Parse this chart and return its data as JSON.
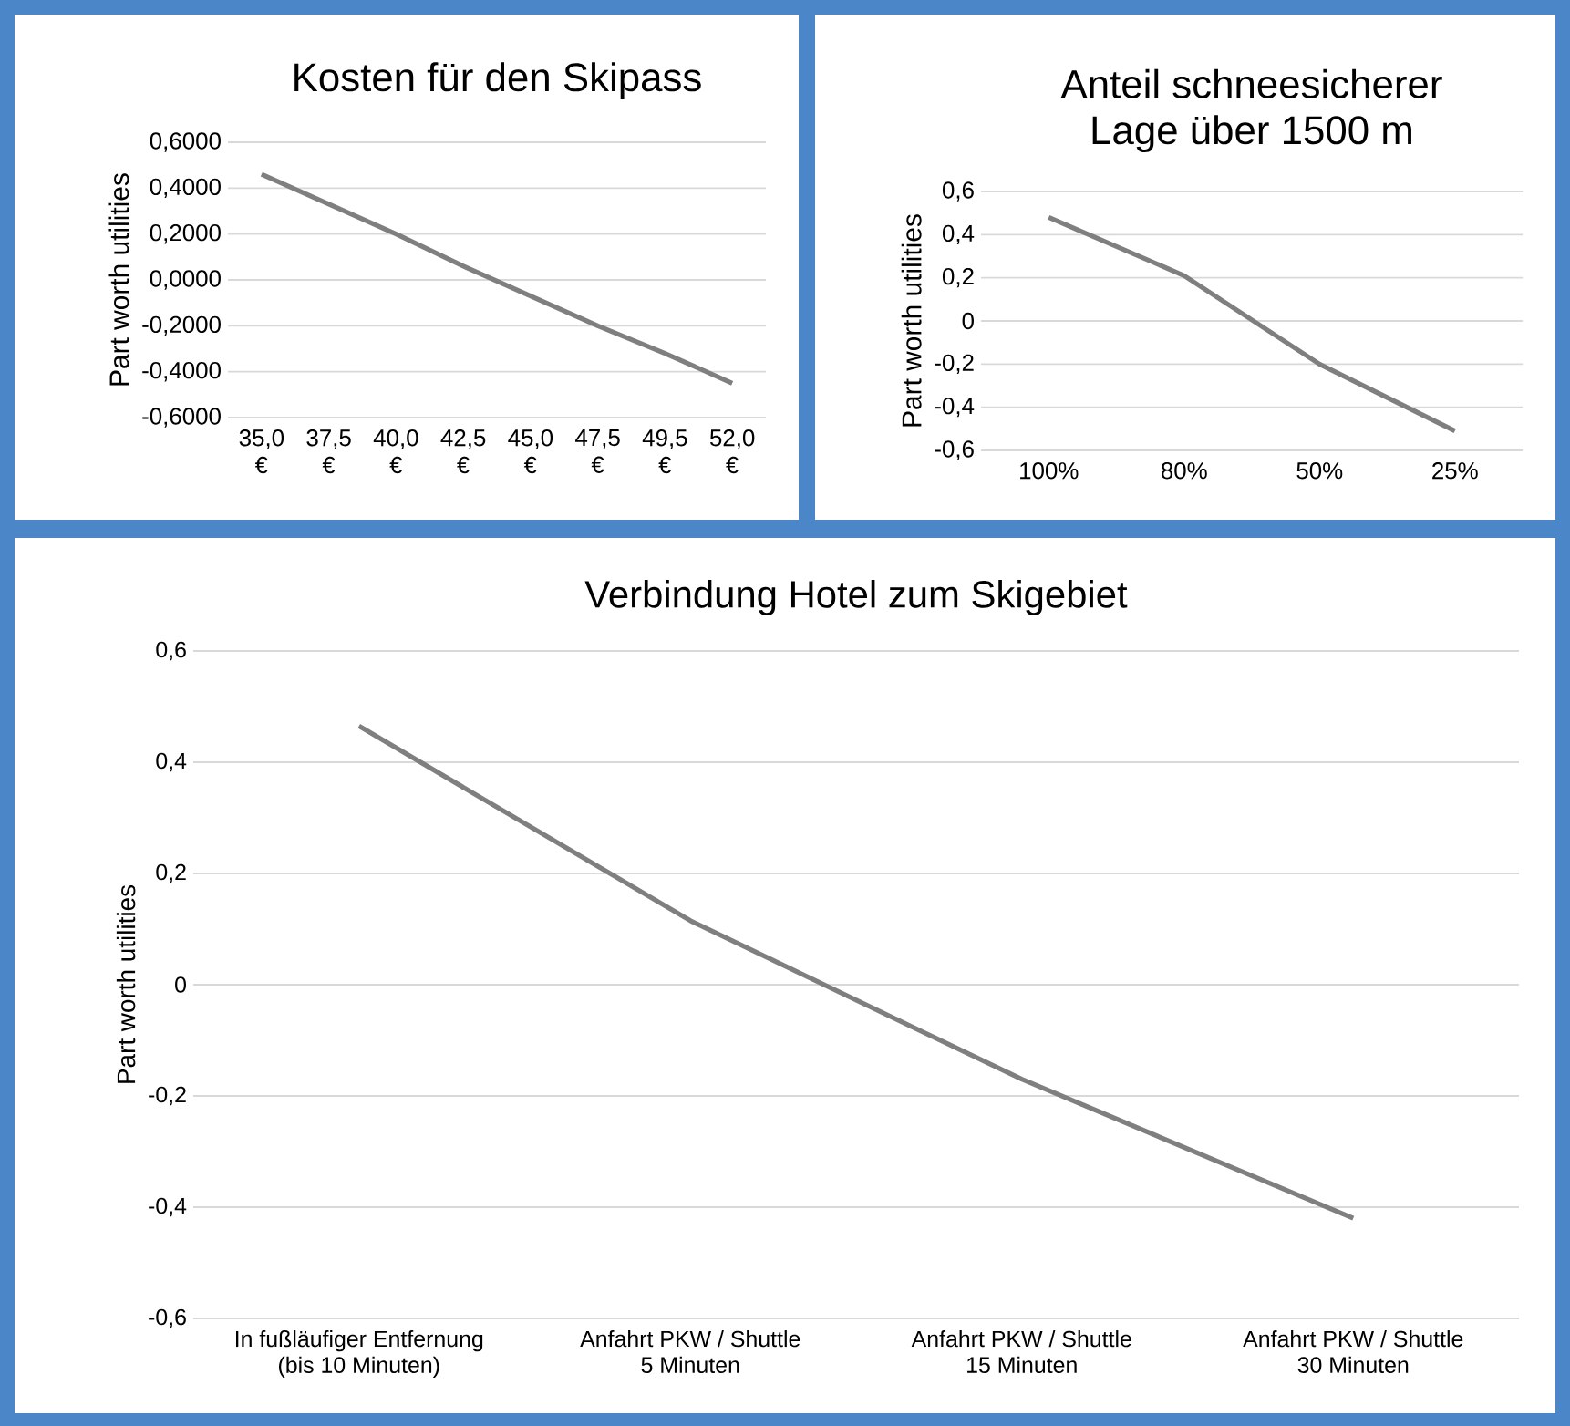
{
  "chart_data": [
    {
      "type": "line",
      "title": "Kosten für den Skipass",
      "ylabel": "Part worth utilities",
      "categories": [
        "35,0 €",
        "37,5 €",
        "40,0 €",
        "42,5 €",
        "45,0 €",
        "47,5 €",
        "49,5 €",
        "52,0 €"
      ],
      "series": [
        {
          "color": "#7f7f7f",
          "values": [
            0.46,
            0.33,
            0.2,
            0.06,
            -0.07,
            -0.2,
            -0.32,
            -0.45
          ]
        }
      ],
      "ylim": [
        -0.6,
        0.6
      ],
      "yticks": [
        {
          "value": -0.6,
          "label": "-0,6000"
        },
        {
          "value": -0.4,
          "label": "-0,4000"
        },
        {
          "value": -0.2,
          "label": "-0,2000"
        },
        {
          "value": 0,
          "label": "0,0000"
        },
        {
          "value": 0.2,
          "label": "0,2000"
        },
        {
          "value": 0.4,
          "label": "0,4000"
        },
        {
          "value": 0.6,
          "label": "0,6000"
        }
      ],
      "grid": "y"
    },
    {
      "type": "line",
      "title": "Anteil schneesicherer Lage über 1500 m",
      "ylabel": "Part worth utilities",
      "categories": [
        "100%",
        "80%",
        "50%",
        "25%"
      ],
      "series": [
        {
          "color": "#7f7f7f",
          "values": [
            0.48,
            0.21,
            -0.2,
            -0.51
          ]
        }
      ],
      "ylim": [
        -0.6,
        0.6
      ],
      "yticks": [
        {
          "value": -0.6,
          "label": "-0,6"
        },
        {
          "value": -0.4,
          "label": "-0,4"
        },
        {
          "value": -0.2,
          "label": "-0,2"
        },
        0,
        {
          "value": 0.2,
          "label": "0,2"
        },
        {
          "value": 0.4,
          "label": "0,4"
        },
        {
          "value": 0.6,
          "label": "0,6"
        }
      ],
      "grid": "y"
    },
    {
      "type": "line",
      "title": "Verbindung Hotel zum Skigebiet",
      "ylabel": "Part worth utilities",
      "categories": [
        "In fußläufiger Entfernung (bis 10 Minuten)",
        "Anfahrt PKW / Shuttle 5 Minuten",
        "Anfahrt PKW / Shuttle 15 Minuten",
        "Anfahrt PKW / Shuttle 30 Minuten"
      ],
      "series": [
        {
          "color": "#7f7f7f",
          "values": [
            0.465,
            0.115,
            -0.17,
            -0.42
          ]
        }
      ],
      "ylim": [
        -0.6,
        0.6
      ],
      "yticks": [
        {
          "value": -0.6,
          "label": "-0,6"
        },
        {
          "value": -0.4,
          "label": "-0,4"
        },
        {
          "value": -0.2,
          "label": "-0,2"
        },
        0,
        {
          "value": 0.2,
          "label": "0,2"
        },
        {
          "value": 0.4,
          "label": "0,4"
        },
        {
          "value": 0.6,
          "label": "0,6"
        }
      ],
      "grid": "y"
    }
  ]
}
